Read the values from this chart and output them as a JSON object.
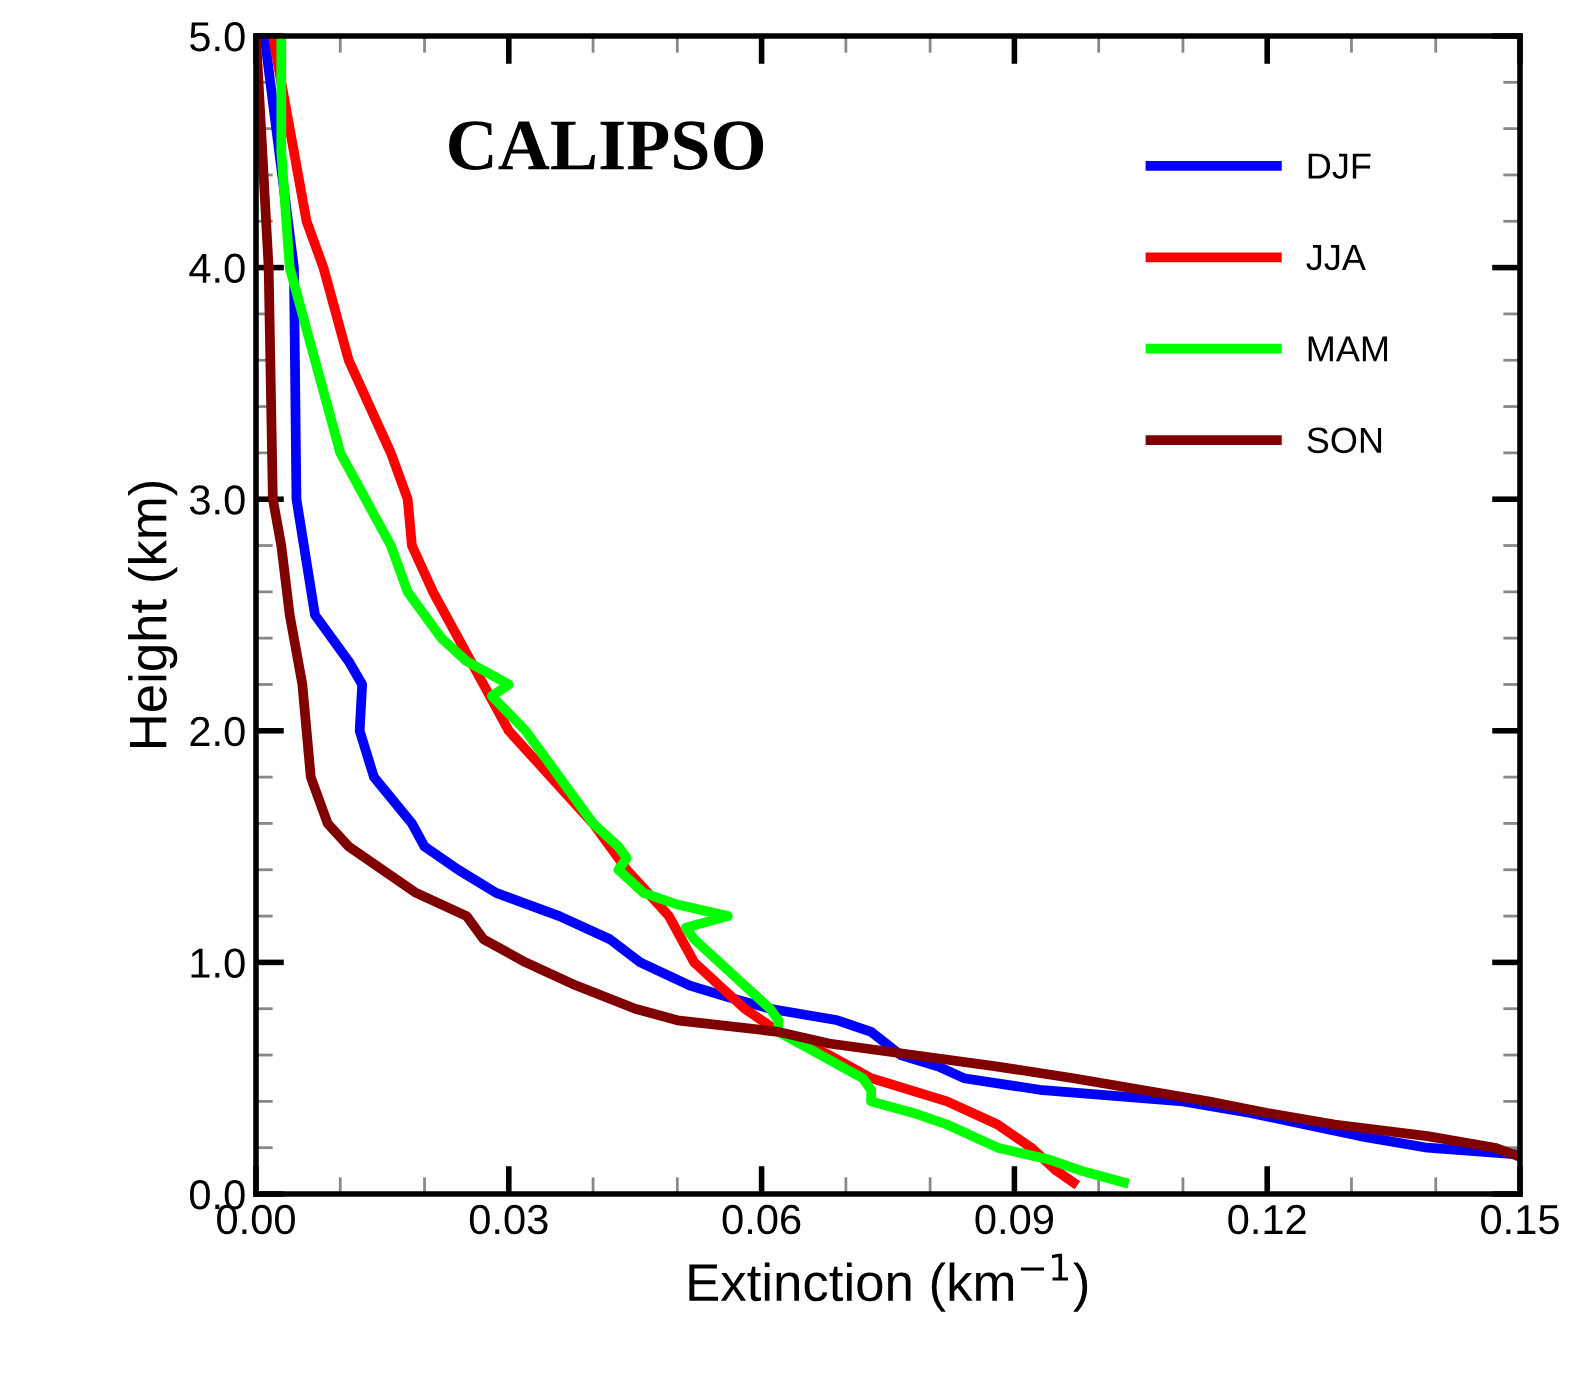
{
  "chart_data": {
    "type": "line",
    "xlabel": "Extinction (km$^{−1}$)",
    "ylabel": "Height (km)",
    "annotations": [
      "CALIPSO"
    ],
    "xlim": [
      0,
      0.15
    ],
    "ylim": [
      0,
      5
    ],
    "xticks": [
      {
        "value": 0,
        "label": "0.00"
      },
      0.03,
      0.06,
      0.09,
      0.12,
      0.15
    ],
    "yticks": [
      {
        "value": 0,
        "label": "0.0"
      },
      {
        "value": 1,
        "label": "1.0"
      },
      {
        "value": 2,
        "label": "2.0"
      },
      {
        "value": 3,
        "label": "3.0"
      },
      {
        "value": 4,
        "label": "4.0"
      },
      {
        "value": 5,
        "label": "5.0"
      }
    ],
    "legend": "top right",
    "grid": false,
    "marker": "none",
    "line_style": "solid",
    "series": [
      {
        "name": "DJF",
        "color": "#0000ff",
        "x": [
          0.001,
          0.0045,
          0.0048,
          0.007,
          0.011,
          0.0126,
          0.0123,
          0.014,
          0.0185,
          0.02,
          0.024,
          0.0285,
          0.036,
          0.042,
          0.0456,
          0.0515,
          0.056,
          0.061,
          0.069,
          0.073,
          0.0765,
          0.081,
          0.084,
          0.093,
          0.11,
          0.118,
          0.1245,
          0.131,
          0.139,
          0.15
        ],
        "values": [
          5.0,
          4.0,
          3.0,
          2.5,
          2.3,
          2.2,
          2.0,
          1.8,
          1.6,
          1.5,
          1.4,
          1.3,
          1.2,
          1.1,
          1.0,
          0.9,
          0.85,
          0.8,
          0.75,
          0.7,
          0.6,
          0.55,
          0.5,
          0.45,
          0.4,
          0.35,
          0.3,
          0.25,
          0.2,
          0.17
        ]
      },
      {
        "name": "JJA",
        "color": "#ff0000",
        "x": [
          0.002,
          0.004,
          0.006,
          0.008,
          0.011,
          0.016,
          0.018,
          0.0185,
          0.021,
          0.024,
          0.027,
          0.03,
          0.035,
          0.04,
          0.044,
          0.049,
          0.052,
          0.055,
          0.058,
          0.062,
          0.068,
          0.073,
          0.082,
          0.088,
          0.092,
          0.095,
          0.097
        ],
        "values": [
          5.0,
          4.6,
          4.2,
          4.0,
          3.6,
          3.2,
          3.0,
          2.8,
          2.6,
          2.4,
          2.2,
          2.0,
          1.8,
          1.6,
          1.4,
          1.2,
          1.0,
          0.9,
          0.8,
          0.7,
          0.6,
          0.5,
          0.4,
          0.3,
          0.2,
          0.1,
          0.05
        ]
      },
      {
        "name": "MAM",
        "color": "#00ff00",
        "x": [
          0.003,
          0.003,
          0.004,
          0.007,
          0.01,
          0.013,
          0.016,
          0.018,
          0.022,
          0.025,
          0.03,
          0.028,
          0.032,
          0.036,
          0.04,
          0.043,
          0.044,
          0.043,
          0.046,
          0.05,
          0.056,
          0.051,
          0.052,
          0.055,
          0.058,
          0.061,
          0.062,
          0.062,
          0.067,
          0.072,
          0.073,
          0.073,
          0.078,
          0.082,
          0.088,
          0.094,
          0.098,
          0.103
        ],
        "values": [
          5.0,
          4.5,
          4.0,
          3.6,
          3.2,
          3.0,
          2.8,
          2.6,
          2.4,
          2.3,
          2.2,
          2.15,
          2.0,
          1.8,
          1.6,
          1.5,
          1.45,
          1.4,
          1.3,
          1.25,
          1.2,
          1.15,
          1.1,
          1.0,
          0.9,
          0.8,
          0.75,
          0.7,
          0.6,
          0.5,
          0.45,
          0.4,
          0.35,
          0.3,
          0.2,
          0.15,
          0.1,
          0.05
        ]
      },
      {
        "name": "SON",
        "color": "#800000",
        "x": [
          0.0,
          0.0015,
          0.002,
          0.003,
          0.004,
          0.0055,
          0.006,
          0.0065,
          0.0085,
          0.011,
          0.015,
          0.019,
          0.025,
          0.027,
          0.032,
          0.038,
          0.045,
          0.05,
          0.062,
          0.068,
          0.078,
          0.088,
          0.097,
          0.105,
          0.113,
          0.12,
          0.128,
          0.139,
          0.147,
          0.15
        ],
        "values": [
          5.0,
          4.0,
          3.0,
          2.8,
          2.5,
          2.2,
          2.0,
          1.8,
          1.6,
          1.5,
          1.4,
          1.3,
          1.2,
          1.1,
          1.0,
          0.9,
          0.8,
          0.75,
          0.7,
          0.65,
          0.6,
          0.55,
          0.5,
          0.45,
          0.4,
          0.35,
          0.3,
          0.25,
          0.2,
          0.16
        ]
      }
    ]
  }
}
